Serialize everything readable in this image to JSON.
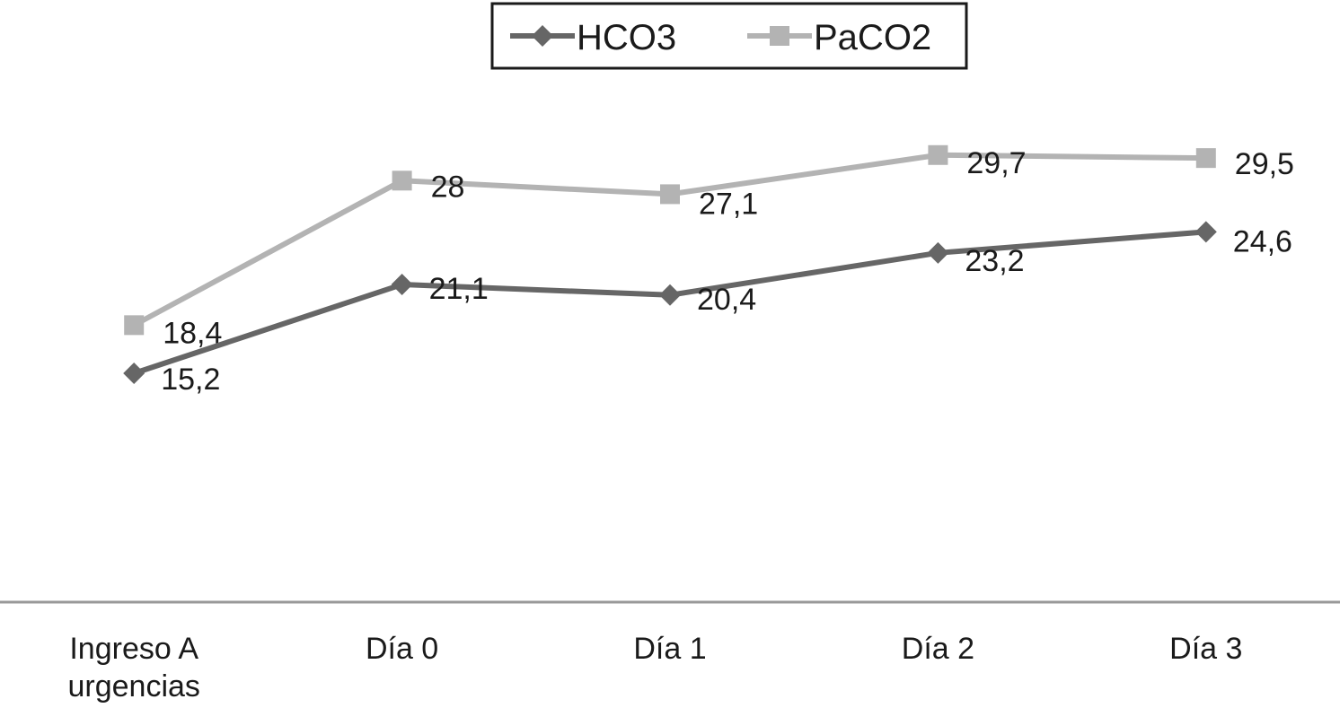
{
  "chart_data": {
    "type": "line",
    "title": "",
    "xlabel": "",
    "ylabel": "",
    "categories": [
      [
        "Ingreso A",
        "urgencias"
      ],
      [
        "Día 0"
      ],
      [
        "Día 1"
      ],
      [
        "Día 2"
      ],
      [
        "Día 3"
      ]
    ],
    "series": [
      {
        "name": "HCO3",
        "values": [
          15.2,
          21.1,
          20.4,
          23.2,
          24.6
        ],
        "labels": [
          "15,2",
          "21,1",
          "20,4",
          "23,2",
          "24,6"
        ],
        "color": "#666666",
        "marker": "diamond"
      },
      {
        "name": "PaCO2",
        "values": [
          18.4,
          28,
          27.1,
          29.7,
          29.5
        ],
        "labels": [
          "18,4",
          "28",
          "27,1",
          "29,7",
          "29,5"
        ],
        "color": "#b3b3b3",
        "marker": "square"
      }
    ],
    "ylim": [
      0,
      40
    ],
    "grid": false,
    "legend_position": "top-center"
  }
}
